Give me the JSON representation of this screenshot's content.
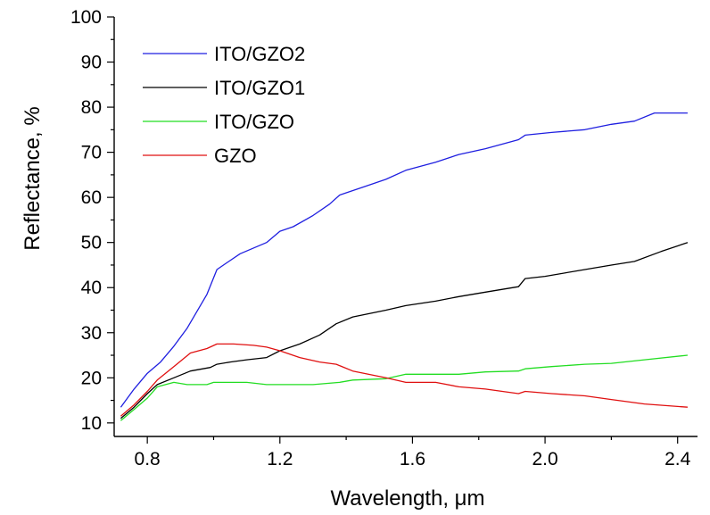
{
  "chart_data": {
    "type": "line",
    "xlabel": "Wavelength, μm",
    "ylabel": "Reflectance, %",
    "xlim": [
      0.7,
      2.46
    ],
    "ylim": [
      7,
      100
    ],
    "xticks": [
      0.8,
      1.2,
      1.6,
      2.0,
      2.4
    ],
    "xtick_labels": [
      "0.8",
      "1.2",
      "1.6",
      "2.0",
      "2.4"
    ],
    "yticks": [
      10,
      20,
      30,
      40,
      50,
      60,
      70,
      80,
      90,
      100
    ],
    "ytick_labels": [
      "10",
      "20",
      "30",
      "40",
      "50",
      "60",
      "70",
      "80",
      "90",
      "100"
    ],
    "grid": false,
    "legend_position": "top-left",
    "series": [
      {
        "name": "ITO/GZO2",
        "color": "#1f1fe0",
        "x": [
          0.72,
          0.76,
          0.8,
          0.84,
          0.88,
          0.92,
          0.98,
          1.01,
          1.04,
          1.08,
          1.16,
          1.2,
          1.24,
          1.3,
          1.35,
          1.38,
          1.46,
          1.52,
          1.58,
          1.67,
          1.74,
          1.82,
          1.92,
          1.94,
          2.02,
          2.12,
          2.2,
          2.27,
          2.33,
          2.43
        ],
        "values": [
          13.5,
          17.5,
          21.0,
          23.5,
          27.0,
          31.0,
          38.5,
          44.0,
          45.5,
          47.5,
          50.0,
          52.5,
          53.5,
          56.0,
          58.5,
          60.5,
          62.5,
          64.0,
          66.0,
          67.8,
          69.5,
          70.8,
          72.8,
          73.8,
          74.4,
          75.0,
          76.2,
          76.9,
          78.7,
          78.7
        ]
      },
      {
        "name": "ITO/GZO1",
        "color": "#000000",
        "x": [
          0.72,
          0.76,
          0.8,
          0.83,
          0.88,
          0.93,
          0.99,
          1.01,
          1.05,
          1.1,
          1.16,
          1.2,
          1.26,
          1.32,
          1.37,
          1.42,
          1.52,
          1.58,
          1.67,
          1.74,
          1.82,
          1.92,
          1.94,
          2.0,
          2.12,
          2.2,
          2.27,
          2.35,
          2.43
        ],
        "values": [
          11.0,
          13.5,
          16.5,
          18.5,
          20.0,
          21.5,
          22.3,
          23.0,
          23.5,
          24.0,
          24.5,
          26.0,
          27.5,
          29.5,
          32.0,
          33.5,
          35.0,
          36.0,
          37.0,
          38.0,
          39.0,
          40.2,
          42.0,
          42.5,
          44.0,
          45.0,
          45.8,
          48.0,
          50.0
        ]
      },
      {
        "name": "ITO/GZO",
        "color": "#22dd22",
        "x": [
          0.72,
          0.76,
          0.8,
          0.83,
          0.88,
          0.92,
          0.98,
          1.0,
          1.04,
          1.1,
          1.16,
          1.22,
          1.3,
          1.38,
          1.42,
          1.52,
          1.58,
          1.67,
          1.74,
          1.82,
          1.92,
          1.94,
          2.02,
          2.12,
          2.2,
          2.3,
          2.43
        ],
        "values": [
          10.5,
          13.0,
          15.5,
          18.0,
          19.0,
          18.5,
          18.5,
          19.0,
          19.0,
          19.0,
          18.5,
          18.5,
          18.5,
          19.0,
          19.5,
          19.8,
          20.8,
          20.8,
          20.8,
          21.3,
          21.5,
          22.0,
          22.5,
          23.0,
          23.2,
          24.0,
          25.0
        ]
      },
      {
        "name": "GZO",
        "color": "#e01010",
        "x": [
          0.72,
          0.76,
          0.8,
          0.83,
          0.88,
          0.93,
          0.98,
          1.01,
          1.06,
          1.12,
          1.16,
          1.2,
          1.26,
          1.32,
          1.37,
          1.42,
          1.52,
          1.58,
          1.67,
          1.74,
          1.82,
          1.92,
          1.94,
          2.02,
          2.12,
          2.2,
          2.3,
          2.43
        ],
        "values": [
          11.5,
          14.0,
          17.0,
          19.5,
          22.5,
          25.5,
          26.5,
          27.5,
          27.5,
          27.2,
          26.8,
          26.0,
          24.5,
          23.5,
          23.0,
          21.5,
          20.0,
          19.0,
          19.0,
          18.0,
          17.5,
          16.5,
          17.0,
          16.5,
          16.0,
          15.2,
          14.2,
          13.5
        ]
      }
    ]
  }
}
